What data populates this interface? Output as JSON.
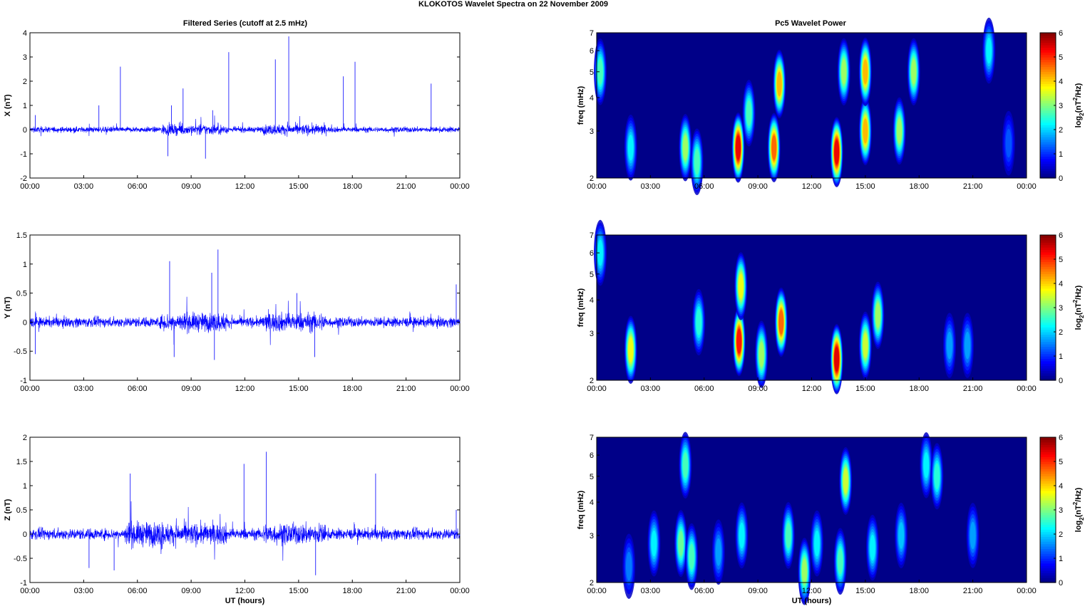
{
  "figure_title": "KLOKOTOS Wavelet Spectra on 22 November  2009",
  "left_title": "Filtered Series (cutoff at 2.5 mHz)",
  "right_title": "Pc5 Wavelet Power",
  "x_ticks": [
    "00:00",
    "03:00",
    "06:00",
    "09:00",
    "12:00",
    "15:00",
    "18:00",
    "21:00",
    "00:00"
  ],
  "x_label": "UT (hours)",
  "colorbar": {
    "label": "log2(nT2/Hz)",
    "ticks": [
      "0",
      "1",
      "2",
      "3",
      "4",
      "5",
      "6"
    ]
  },
  "colors": {
    "series": "#0000ff",
    "background_low": "#00008f"
  },
  "chart_data": [
    {
      "type": "line",
      "name": "X component filtered series",
      "ylabel": "X (nT)",
      "x_range_hours": [
        0,
        24
      ],
      "ylim": [
        -2,
        4
      ],
      "yticks": [
        "-2",
        "-1",
        "0",
        "1",
        "2",
        "3",
        "4"
      ],
      "noise_amplitude_nT": 0.08,
      "spikes": [
        {
          "t": 0.3,
          "v": 0.6
        },
        {
          "t": 3.85,
          "v": 1.0
        },
        {
          "t": 5.05,
          "v": 2.6
        },
        {
          "t": 7.9,
          "v": 1.0
        },
        {
          "t": 8.55,
          "v": 1.7
        },
        {
          "t": 10.2,
          "v": 0.8
        },
        {
          "t": 11.1,
          "v": 3.2
        },
        {
          "t": 13.7,
          "v": 2.9
        },
        {
          "t": 14.45,
          "v": 3.85
        },
        {
          "t": 17.5,
          "v": 2.2
        },
        {
          "t": 18.15,
          "v": 2.8
        },
        {
          "t": 22.4,
          "v": 1.9
        },
        {
          "t": 9.8,
          "v": -1.2
        },
        {
          "t": 7.7,
          "v": -1.1
        }
      ]
    },
    {
      "type": "line",
      "name": "Y component filtered series",
      "ylabel": "Y (nT)",
      "x_range_hours": [
        0,
        24
      ],
      "ylim": [
        -1,
        1.5
      ],
      "yticks": [
        "-1",
        "-0.5",
        "0",
        "0.5",
        "1",
        "1.5"
      ],
      "noise_amplitude_nT": 0.06,
      "spikes": [
        {
          "t": 7.8,
          "v": 1.05
        },
        {
          "t": 8.05,
          "v": -0.6
        },
        {
          "t": 10.5,
          "v": 1.25
        },
        {
          "t": 10.15,
          "v": 0.85
        },
        {
          "t": 10.3,
          "v": -0.65
        },
        {
          "t": 14.9,
          "v": 0.5
        },
        {
          "t": 15.9,
          "v": -0.6
        },
        {
          "t": 23.8,
          "v": 0.65
        },
        {
          "t": 0.3,
          "v": -0.55
        }
      ]
    },
    {
      "type": "line",
      "name": "Z component filtered series",
      "ylabel": "Z (nT)",
      "x_range_hours": [
        0,
        24
      ],
      "ylim": [
        -1,
        2
      ],
      "yticks": [
        "-1",
        "-0.5",
        "0",
        "0.5",
        "1",
        "1.5",
        "2"
      ],
      "noise_amplitude_nT": 0.08,
      "spikes": [
        {
          "t": 3.3,
          "v": -0.7
        },
        {
          "t": 4.7,
          "v": -0.75
        },
        {
          "t": 5.6,
          "v": 1.25
        },
        {
          "t": 11.95,
          "v": 1.45
        },
        {
          "t": 13.2,
          "v": 1.7
        },
        {
          "t": 15.95,
          "v": -0.85
        },
        {
          "t": 19.3,
          "v": 1.25
        },
        {
          "t": 23.8,
          "v": 0.5
        }
      ]
    },
    {
      "type": "heatmap",
      "name": "X wavelet power",
      "ylabel": "freq (mHz)",
      "yscale": "log",
      "ylim_mHz": [
        2,
        7
      ],
      "yticks": [
        "2",
        "3",
        "4",
        "5",
        "6",
        "7"
      ],
      "clim": [
        0,
        6
      ],
      "colormap": "jet",
      "blobs": [
        {
          "t": 0.2,
          "f": 5.0,
          "p": 3.0
        },
        {
          "t": 1.9,
          "f": 2.6,
          "p": 2.5
        },
        {
          "t": 4.95,
          "f": 2.6,
          "p": 3.5
        },
        {
          "t": 5.6,
          "f": 2.3,
          "p": 3.0
        },
        {
          "t": 7.9,
          "f": 2.6,
          "p": 5.7
        },
        {
          "t": 8.5,
          "f": 3.5,
          "p": 3.0
        },
        {
          "t": 9.9,
          "f": 2.6,
          "p": 5.0
        },
        {
          "t": 10.2,
          "f": 4.5,
          "p": 4.5
        },
        {
          "t": 13.4,
          "f": 2.5,
          "p": 5.7
        },
        {
          "t": 13.8,
          "f": 5.0,
          "p": 3.5
        },
        {
          "t": 15.0,
          "f": 3.0,
          "p": 4.5
        },
        {
          "t": 15.0,
          "f": 5.0,
          "p": 4.5
        },
        {
          "t": 16.9,
          "f": 3.0,
          "p": 3.5
        },
        {
          "t": 17.7,
          "f": 5.0,
          "p": 3.5
        },
        {
          "t": 21.9,
          "f": 6.0,
          "p": 2.5
        },
        {
          "t": 23.0,
          "f": 2.7,
          "p": 1.5
        }
      ]
    },
    {
      "type": "heatmap",
      "name": "Y wavelet power",
      "ylabel": "freq (mHz)",
      "yscale": "log",
      "ylim_mHz": [
        2,
        7
      ],
      "yticks": [
        "2",
        "3",
        "4",
        "5",
        "6",
        "7"
      ],
      "clim": [
        0,
        6
      ],
      "colormap": "jet",
      "blobs": [
        {
          "t": 0.2,
          "f": 6.0,
          "p": 2.5
        },
        {
          "t": 1.9,
          "f": 2.6,
          "p": 4.0
        },
        {
          "t": 5.7,
          "f": 3.3,
          "p": 2.8
        },
        {
          "t": 7.95,
          "f": 2.8,
          "p": 5.5
        },
        {
          "t": 8.05,
          "f": 4.5,
          "p": 4.0
        },
        {
          "t": 9.2,
          "f": 2.5,
          "p": 3.5
        },
        {
          "t": 10.3,
          "f": 3.3,
          "p": 5.0
        },
        {
          "t": 13.4,
          "f": 2.4,
          "p": 5.8
        },
        {
          "t": 15.0,
          "f": 2.7,
          "p": 3.8
        },
        {
          "t": 15.7,
          "f": 3.5,
          "p": 3.5
        },
        {
          "t": 19.7,
          "f": 2.7,
          "p": 2.0
        },
        {
          "t": 20.7,
          "f": 2.7,
          "p": 2.0
        }
      ]
    },
    {
      "type": "heatmap",
      "name": "Z wavelet power",
      "ylabel": "freq (mHz)",
      "yscale": "log",
      "ylim_mHz": [
        2,
        7
      ],
      "yticks": [
        "2",
        "3",
        "4",
        "5",
        "6",
        "7"
      ],
      "clim": [
        0,
        6
      ],
      "colormap": "jet",
      "blobs": [
        {
          "t": 1.8,
          "f": 2.3,
          "p": 1.8
        },
        {
          "t": 3.2,
          "f": 2.8,
          "p": 2.5
        },
        {
          "t": 4.7,
          "f": 2.8,
          "p": 3.2
        },
        {
          "t": 4.95,
          "f": 5.5,
          "p": 3.0
        },
        {
          "t": 5.3,
          "f": 2.5,
          "p": 3.0
        },
        {
          "t": 6.8,
          "f": 2.6,
          "p": 2.0
        },
        {
          "t": 8.1,
          "f": 3.0,
          "p": 2.5
        },
        {
          "t": 10.7,
          "f": 3.0,
          "p": 3.0
        },
        {
          "t": 11.6,
          "f": 2.2,
          "p": 3.5
        },
        {
          "t": 12.3,
          "f": 2.8,
          "p": 2.5
        },
        {
          "t": 13.6,
          "f": 2.4,
          "p": 3.0
        },
        {
          "t": 13.9,
          "f": 4.8,
          "p": 3.8
        },
        {
          "t": 15.4,
          "f": 2.7,
          "p": 2.5
        },
        {
          "t": 17.0,
          "f": 3.0,
          "p": 2.2
        },
        {
          "t": 18.4,
          "f": 5.5,
          "p": 2.5
        },
        {
          "t": 19.0,
          "f": 5.0,
          "p": 2.8
        },
        {
          "t": 21.0,
          "f": 3.0,
          "p": 2.0
        }
      ]
    }
  ]
}
